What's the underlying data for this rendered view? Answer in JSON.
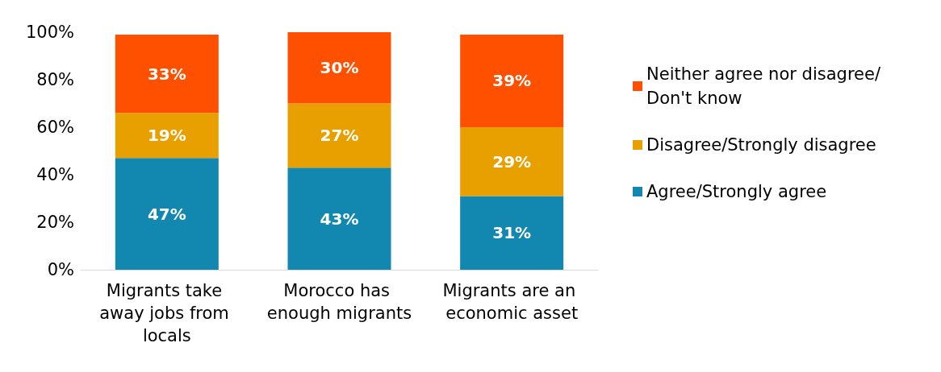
{
  "chart_data": {
    "type": "bar",
    "stacked": true,
    "categories": [
      "Migrants take away jobs from locals",
      "Morocco has enough migrants",
      "Migrants are an economic asset"
    ],
    "series": [
      {
        "name": "Agree/Strongly agree",
        "color": "#1287b0",
        "values": [
          47,
          43,
          31
        ],
        "value_labels": [
          "47%",
          "43%",
          "31%"
        ]
      },
      {
        "name": "Disagree/Strongly disagree",
        "color": "#e89f00",
        "values": [
          19,
          27,
          29
        ],
        "value_labels": [
          "19%",
          "27%",
          "29%"
        ]
      },
      {
        "name": "Neither agree nor disagree/Don't know",
        "color": "#ff5000",
        "values": [
          33,
          30,
          39
        ],
        "value_labels": [
          "33%",
          "30%",
          "39%"
        ]
      }
    ],
    "ylim": [
      0,
      100
    ],
    "yticks": [
      {
        "value": 0,
        "label": "0%"
      },
      {
        "value": 20,
        "label": "20%"
      },
      {
        "value": 40,
        "label": "40%"
      },
      {
        "value": 60,
        "label": "60%"
      },
      {
        "value": 80,
        "label": "80%"
      },
      {
        "value": 100,
        "label": "100%"
      }
    ],
    "grid": false,
    "legend": "right"
  }
}
